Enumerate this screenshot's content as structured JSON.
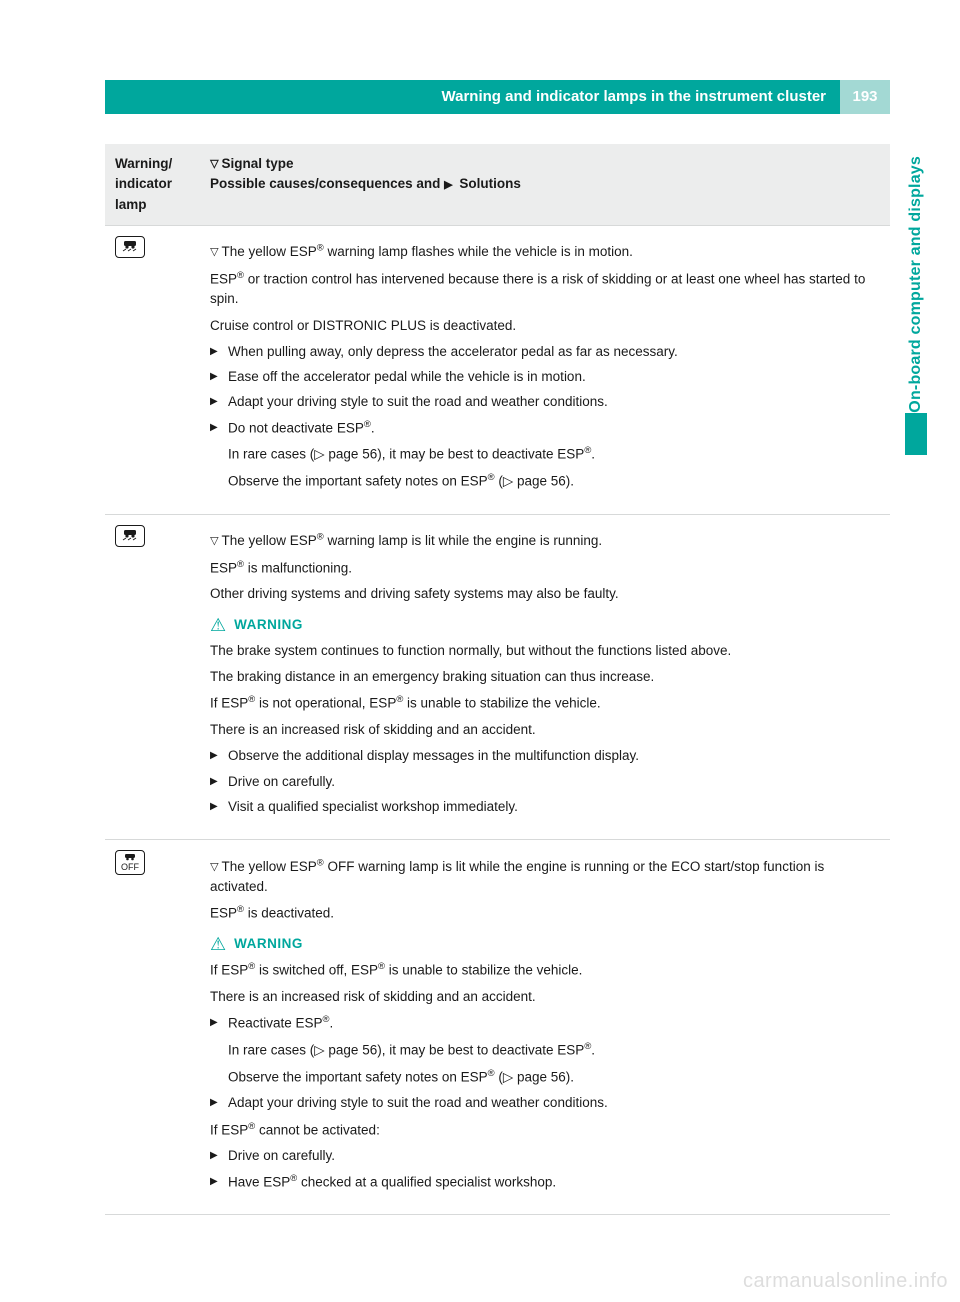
{
  "header": {
    "title": "Warning and indicator lamps in the instrument cluster",
    "page_number": "193"
  },
  "side_tab": "On-board computer and displays",
  "colors": {
    "brand": "#00a79d",
    "brand_light": "#a3d9d4",
    "thead_bg": "#eceded",
    "rule": "#d7d9d9",
    "text": "#1a1a1a",
    "watermark": "#dddddd"
  },
  "table": {
    "header": {
      "col1_line1": "Warning/",
      "col1_line2": "indicator",
      "col1_line3": "lamp",
      "col2_line1": "Signal type",
      "col2_line2_a": "Possible causes/consequences and ",
      "col2_line2_b": " Solutions"
    },
    "rows": [
      {
        "lamp_icon": "esp",
        "signal": "The yellow ESP® warning lamp flashes while the vehicle is in motion.",
        "p1": "ESP® or traction control has intervened because there is a risk of skidding or at least one wheel has started to spin.",
        "p2": "Cruise control or DISTRONIC PLUS is deactivated.",
        "bullets": [
          "When pulling away, only depress the accelerator pedal as far as necessary.",
          "Ease off the accelerator pedal while the vehicle is in motion.",
          "Adapt your driving style to suit the road and weather conditions.",
          "Do not deactivate ESP®."
        ],
        "sub1": "In rare cases (▷ page 56), it may be best to deactivate ESP®.",
        "sub2": "Observe the important safety notes on ESP® (▷ page 56)."
      },
      {
        "lamp_icon": "esp",
        "signal": "The yellow ESP® warning lamp is lit while the engine is running.",
        "p1": "ESP® is malfunctioning.",
        "p2": "Other driving systems and driving safety systems may also be faulty.",
        "warning_label": "WARNING",
        "w1": "The brake system continues to function normally, but without the functions listed above.",
        "w2": "The braking distance in an emergency braking situation can thus increase.",
        "w3": "If ESP® is not operational, ESP® is unable to stabilize the vehicle.",
        "w4": "There is an increased risk of skidding and an accident.",
        "bullets": [
          "Observe the additional display messages in the multifunction display.",
          "Drive on carefully.",
          "Visit a qualified specialist workshop immediately."
        ]
      },
      {
        "lamp_icon": "esp-off",
        "signal": "The yellow ESP® OFF warning lamp is lit while the engine is running or the ECO start/stop function is activated.",
        "p1": "ESP® is deactivated.",
        "warning_label": "WARNING",
        "w1": "If ESP® is switched off, ESP® is unable to stabilize the vehicle.",
        "w2": "There is an increased risk of skidding and an accident.",
        "bullets1": [
          "Reactivate ESP®."
        ],
        "sub1": "In rare cases (▷ page 56), it may be best to deactivate ESP®.",
        "sub2": "Observe the important safety notes on ESP® (▷ page 56).",
        "bullets2": [
          "Adapt your driving style to suit the road and weather conditions."
        ],
        "p2": "If ESP® cannot be activated:",
        "bullets3": [
          "Drive on carefully.",
          "Have ESP® checked at a qualified specialist workshop."
        ]
      }
    ]
  },
  "watermark": "carmanualsonline.info"
}
